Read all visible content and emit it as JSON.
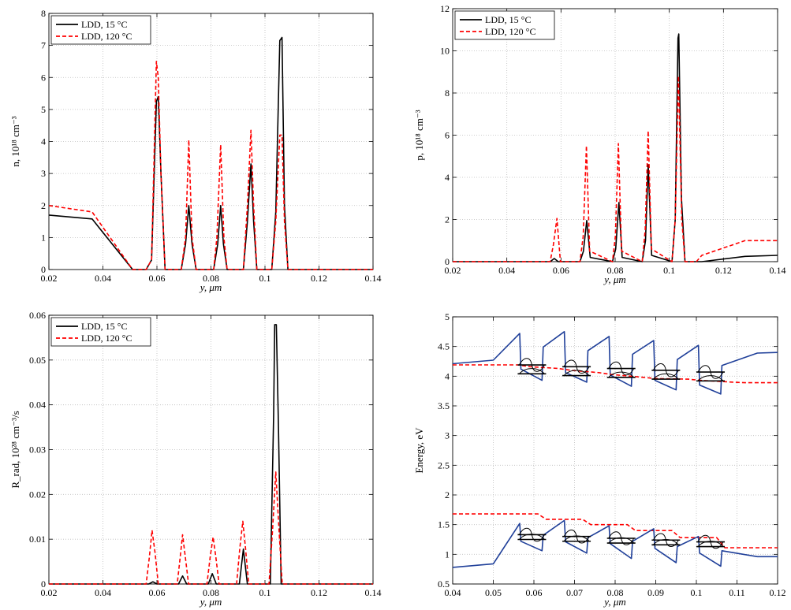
{
  "chart_data": [
    {
      "type": "line",
      "ylabel": "n, 10¹⁸ cm⁻³",
      "xlim": [
        0.02,
        0.14
      ],
      "ylim": [
        0,
        8
      ],
      "xticks": [
        0.02,
        0.04,
        0.06,
        0.08,
        0.1,
        0.12,
        0.14
      ],
      "xtick_labels": [
        "0.02",
        "0.04",
        "0.06",
        "0.08",
        "0.1",
        "0.12",
        "0.14"
      ],
      "yticks": [
        0,
        1,
        2,
        3,
        4,
        5,
        6,
        7,
        8
      ],
      "ytick_labels": [
        "0",
        "1",
        "2",
        "3",
        "4",
        "5",
        "6",
        "7",
        "8"
      ],
      "grid": true,
      "legend": "top-left",
      "series": [
        {
          "name": "LDD, 15 °C",
          "color": "#000000",
          "style": "solid",
          "x": [
            0.02,
            0.036,
            0.051,
            0.056,
            0.058,
            0.0598,
            0.0605,
            0.0615,
            0.063,
            0.069,
            0.0706,
            0.0718,
            0.073,
            0.0745,
            0.081,
            0.0825,
            0.0836,
            0.0846,
            0.086,
            0.092,
            0.0935,
            0.0948,
            0.0958,
            0.097,
            0.1025,
            0.104,
            0.1055,
            0.1063,
            0.1072,
            0.1085,
            0.14
          ],
          "y": [
            1.7,
            1.58,
            0,
            0,
            0.3,
            5.25,
            5.4,
            3.0,
            0,
            0,
            0.8,
            2.0,
            0.8,
            0,
            0,
            0.8,
            2.0,
            0.8,
            0,
            0,
            1.5,
            3.3,
            1.5,
            0,
            0,
            1.8,
            7.15,
            7.25,
            2.0,
            0,
            0
          ]
        },
        {
          "name": "LDD, 120 °C",
          "color": "#ff0000",
          "style": "dashed",
          "x": [
            0.02,
            0.036,
            0.051,
            0.056,
            0.058,
            0.0598,
            0.0605,
            0.0615,
            0.063,
            0.069,
            0.0706,
            0.0718,
            0.073,
            0.0745,
            0.081,
            0.0822,
            0.0836,
            0.0848,
            0.086,
            0.092,
            0.0935,
            0.0948,
            0.0958,
            0.097,
            0.1025,
            0.104,
            0.1055,
            0.1063,
            0.1072,
            0.1085,
            0.14
          ],
          "y": [
            2.0,
            1.8,
            0,
            0,
            0.3,
            6.5,
            6.0,
            3.0,
            0,
            0,
            1.0,
            4.05,
            1.0,
            0,
            0,
            1.0,
            3.9,
            1.0,
            0,
            0,
            2.0,
            4.35,
            2.0,
            0,
            0,
            1.5,
            4.2,
            4.2,
            1.5,
            0,
            0
          ]
        }
      ]
    },
    {
      "type": "line",
      "ylabel": "p, 10¹⁸ cm⁻³",
      "xlim": [
        0.02,
        0.14
      ],
      "ylim": [
        0,
        12
      ],
      "xticks": [
        0.02,
        0.04,
        0.06,
        0.08,
        0.1,
        0.12,
        0.14
      ],
      "xtick_labels": [
        "0.02",
        "0.04",
        "0.06",
        "0.08",
        "0.1",
        "0.12",
        "0.14"
      ],
      "yticks": [
        0,
        2,
        4,
        6,
        8,
        10,
        12
      ],
      "ytick_labels": [
        "0",
        "2",
        "4",
        "6",
        "8",
        "10",
        "12"
      ],
      "grid": true,
      "legend": "top-left",
      "series": [
        {
          "name": "LDD, 15 °C",
          "color": "#000000",
          "style": "solid",
          "x": [
            0.02,
            0.056,
            0.0575,
            0.059,
            0.067,
            0.0683,
            0.0695,
            0.0708,
            0.079,
            0.0802,
            0.0814,
            0.0826,
            0.09,
            0.0912,
            0.0922,
            0.0935,
            0.101,
            0.1022,
            0.1032,
            0.1035,
            0.1045,
            0.1058,
            0.112,
            0.128,
            0.14
          ],
          "y": [
            0,
            0,
            0.15,
            0,
            0,
            0.5,
            1.95,
            0.2,
            0,
            0.6,
            2.8,
            0.2,
            0,
            1.0,
            4.6,
            0.3,
            0,
            2.0,
            10.6,
            10.8,
            3.0,
            0,
            0,
            0.25,
            0.3
          ]
        },
        {
          "name": "LDD, 120 °C",
          "color": "#ff0000",
          "style": "dashed",
          "x": [
            0.02,
            0.056,
            0.0572,
            0.0585,
            0.0598,
            0.067,
            0.0682,
            0.0694,
            0.0706,
            0.079,
            0.0801,
            0.0812,
            0.0824,
            0.09,
            0.0911,
            0.0922,
            0.0934,
            0.101,
            0.1022,
            0.1034,
            0.1046,
            0.1058,
            0.11,
            0.112,
            0.128,
            0.14
          ],
          "y": [
            0,
            0,
            0.8,
            2.05,
            0,
            0,
            1.2,
            5.5,
            0.5,
            0,
            1.2,
            5.6,
            0.5,
            0,
            1.5,
            6.2,
            0.6,
            0,
            2.0,
            8.8,
            2.0,
            0,
            0,
            0.3,
            1.0,
            1.0
          ]
        }
      ]
    },
    {
      "type": "line",
      "ylabel": "R_rad, 10²⁸ cm⁻³/s",
      "xlim": [
        0.02,
        0.14
      ],
      "ylim": [
        0,
        0.06
      ],
      "xticks": [
        0.02,
        0.04,
        0.06,
        0.08,
        0.1,
        0.12,
        0.14
      ],
      "xtick_labels": [
        "0.02",
        "0.04",
        "0.06",
        "0.08",
        "0.1",
        "0.12",
        "0.14"
      ],
      "yticks": [
        0,
        0.01,
        0.02,
        0.03,
        0.04,
        0.05,
        0.06
      ],
      "ytick_labels": [
        "0",
        "0.01",
        "0.02",
        "0.03",
        "0.04",
        "0.05",
        "0.06"
      ],
      "grid": true,
      "legend": "top-left",
      "series": [
        {
          "name": "LDD, 15 °C",
          "color": "#000000",
          "style": "solid",
          "x": [
            0.02,
            0.057,
            0.0585,
            0.06,
            0.068,
            0.0695,
            0.071,
            0.079,
            0.0805,
            0.082,
            0.0905,
            0.092,
            0.0935,
            0.102,
            0.1032,
            0.1036,
            0.1042,
            0.105,
            0.106,
            0.14
          ],
          "y": [
            0,
            0,
            0.0005,
            0,
            0,
            0.0018,
            0,
            0,
            0.0023,
            0,
            0,
            0.0078,
            0,
            0,
            0.038,
            0.0579,
            0.0579,
            0.035,
            0,
            0
          ]
        },
        {
          "name": "LDD, 120 °C",
          "color": "#ff0000",
          "style": "dashed",
          "x": [
            0.02,
            0.056,
            0.0572,
            0.0582,
            0.0593,
            0.0605,
            0.0675,
            0.0686,
            0.0695,
            0.0705,
            0.0717,
            0.0785,
            0.0797,
            0.0808,
            0.0818,
            0.083,
            0.0895,
            0.0907,
            0.0918,
            0.0928,
            0.094,
            0.1015,
            0.1028,
            0.104,
            0.1052,
            0.1064,
            0.14
          ],
          "y": [
            0,
            0,
            0.006,
            0.012,
            0.007,
            0,
            0,
            0.006,
            0.011,
            0.006,
            0,
            0,
            0.006,
            0.0105,
            0.006,
            0,
            0,
            0.008,
            0.014,
            0.008,
            0,
            0,
            0.012,
            0.025,
            0.012,
            0,
            0
          ]
        }
      ]
    },
    {
      "type": "line",
      "ylabel": "Energy, eV",
      "xlim": [
        0.04,
        0.12
      ],
      "ylim": [
        0.5,
        5
      ],
      "xticks": [
        0.04,
        0.05,
        0.06,
        0.07,
        0.08,
        0.09,
        0.1,
        0.11,
        0.12
      ],
      "xtick_labels": [
        "0.04",
        "0.05",
        "0.06",
        "0.07",
        "0.08",
        "0.09",
        "0.1",
        "0.11",
        "0.12"
      ],
      "yticks": [
        0.5,
        1,
        1.5,
        2,
        2.5,
        3,
        3.5,
        4,
        4.5,
        5
      ],
      "ytick_labels": [
        "0.5",
        "1",
        "1.5",
        "2",
        "2.5",
        "3",
        "3.5",
        "4",
        "4.5",
        "5"
      ],
      "grid": true,
      "legend": "none",
      "series": [
        {
          "color": "#1f3f99",
          "style": "solid",
          "x": [
            0.04,
            0.05,
            0.0565,
            0.0568,
            0.062,
            0.0623,
            0.0675,
            0.0678,
            0.073,
            0.0733,
            0.0785,
            0.0788,
            0.084,
            0.0843,
            0.0895,
            0.0898,
            0.095,
            0.0953,
            0.1005,
            0.1008,
            0.106,
            0.1063,
            0.115,
            0.12
          ],
          "y": [
            4.21,
            4.27,
            4.72,
            4.12,
            3.93,
            4.49,
            4.75,
            4.06,
            3.9,
            4.43,
            4.67,
            4.02,
            3.83,
            4.37,
            4.6,
            3.93,
            3.77,
            4.28,
            4.52,
            3.85,
            3.7,
            4.18,
            4.39,
            4.4
          ]
        },
        {
          "color": "#ff0000",
          "style": "dashed",
          "x": [
            0.04,
            0.056,
            0.059,
            0.066,
            0.069,
            0.076,
            0.079,
            0.087,
            0.09,
            0.098,
            0.101,
            0.109,
            0.112,
            0.12
          ],
          "y": [
            4.19,
            4.19,
            4.16,
            4.13,
            4.1,
            4.06,
            4.03,
            3.98,
            3.96,
            3.95,
            3.93,
            3.9,
            3.89,
            3.89
          ]
        },
        {
          "color": "#ff0000",
          "style": "dashed",
          "x": [
            0.04,
            0.061,
            0.063,
            0.072,
            0.074,
            0.083,
            0.085,
            0.094,
            0.096,
            0.105,
            0.107,
            0.115,
            0.12
          ],
          "y": [
            1.68,
            1.68,
            1.59,
            1.59,
            1.5,
            1.5,
            1.4,
            1.4,
            1.28,
            1.28,
            1.11,
            1.11,
            1.11
          ]
        },
        {
          "color": "#1f3f99",
          "style": "solid",
          "x": [
            0.04,
            0.05,
            0.0565,
            0.0568,
            0.062,
            0.0623,
            0.0675,
            0.0678,
            0.073,
            0.0733,
            0.0785,
            0.0788,
            0.084,
            0.0843,
            0.0895,
            0.0898,
            0.095,
            0.0953,
            0.1005,
            0.1008,
            0.106,
            0.1063,
            0.115,
            0.12
          ],
          "y": [
            0.78,
            0.84,
            1.52,
            1.22,
            1.06,
            1.32,
            1.57,
            1.21,
            1.02,
            1.28,
            1.48,
            1.18,
            0.93,
            1.22,
            1.43,
            1.1,
            0.86,
            1.13,
            1.3,
            1.02,
            0.8,
            1.06,
            0.96,
            0.96
          ]
        }
      ]
    }
  ],
  "xlabel": "y, μm"
}
